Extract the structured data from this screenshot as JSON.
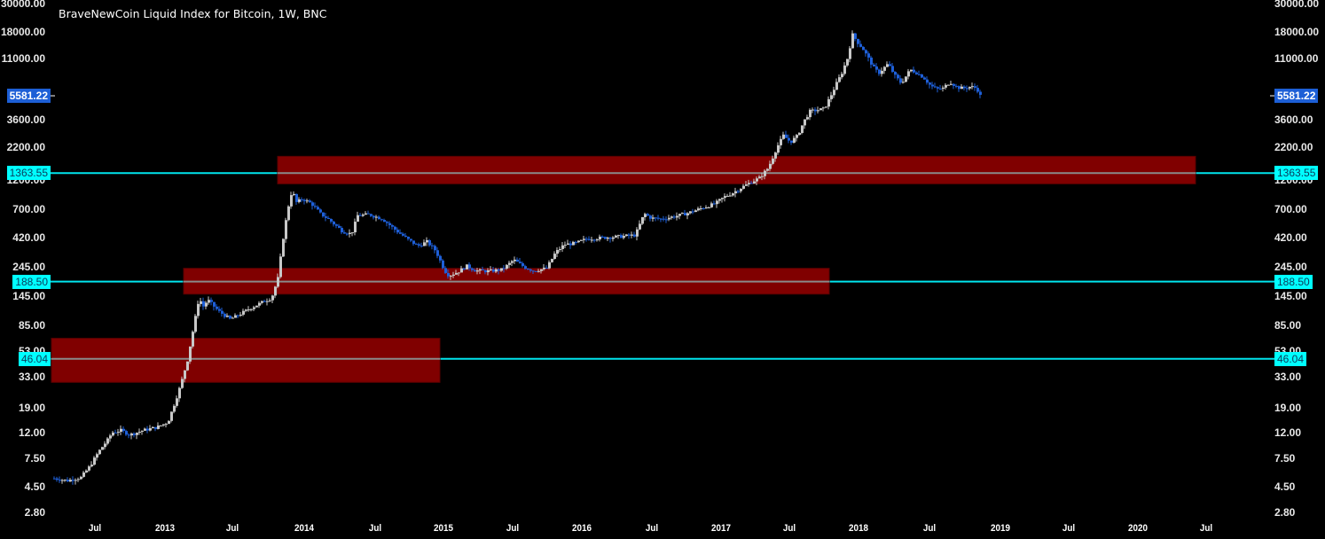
{
  "header": {
    "title": "BraveNewCoin Liquid Index for Bitcoin, 1W, BNC"
  },
  "colors": {
    "background": "#000000",
    "up_candle": "#c8c8c8",
    "down_candle": "#1e5fd8",
    "zone_fill": "#800000",
    "zone_border": "#5a0000",
    "zone_midline": "#8a8a8a",
    "level_line": "#00e5ee",
    "current_price_bg": "#1d5fd6",
    "level_label_bg": "#00ffff"
  },
  "current_price": {
    "label": "5581.22",
    "value": 5581.22
  },
  "levels": [
    {
      "label": "1363.55",
      "value": 1363.55
    },
    {
      "label": "188.50",
      "value": 188.5
    },
    {
      "label": "46.04",
      "value": 46.04
    }
  ],
  "chart_data": {
    "type": "candlestick",
    "title": "BraveNewCoin Liquid Index for Bitcoin, 1W, BNC",
    "interval": "1W",
    "y_scale": "log",
    "ylim": [
      2.8,
      30000
    ],
    "y_ticks": [
      "30000.00",
      "18000.00",
      "11000.00",
      "3600.00",
      "2200.00",
      "1200.00",
      "700.00",
      "420.00",
      "245.00",
      "145.00",
      "85.00",
      "53.00",
      "33.00",
      "19.00",
      "12.00",
      "7.50",
      "4.50",
      "2.80"
    ],
    "x_ticks": [
      {
        "label": "Jul",
        "x": 107
      },
      {
        "label": "2013",
        "x": 186
      },
      {
        "label": "Jul",
        "x": 262
      },
      {
        "label": "2014",
        "x": 343
      },
      {
        "label": "Jul",
        "x": 423
      },
      {
        "label": "2015",
        "x": 500
      },
      {
        "label": "Jul",
        "x": 578
      },
      {
        "label": "2016",
        "x": 656
      },
      {
        "label": "Jul",
        "x": 735
      },
      {
        "label": "2017",
        "x": 813
      },
      {
        "label": "Jul",
        "x": 890
      },
      {
        "label": "2018",
        "x": 968
      },
      {
        "label": "Jul",
        "x": 1048
      },
      {
        "label": "2019",
        "x": 1128
      },
      {
        "label": "Jul",
        "x": 1205
      },
      {
        "label": "2020",
        "x": 1283
      },
      {
        "label": "Jul",
        "x": 1360
      }
    ],
    "zones": [
      {
        "name": "resistance-zone-1363",
        "x1": 313,
        "x2": 1348,
        "top": 1850,
        "bottom": 1120,
        "mid": 1363.55
      },
      {
        "name": "support-zone-188",
        "x1": 207,
        "x2": 935,
        "top": 240,
        "bottom": 150,
        "mid": 188.5
      },
      {
        "name": "support-zone-46",
        "x1": 58,
        "x2": 496,
        "top": 67,
        "bottom": 30,
        "mid": 46.04
      }
    ],
    "price_path": [
      [
        60,
        5.2
      ],
      [
        75,
        5.0
      ],
      [
        90,
        5.3
      ],
      [
        100,
        6.5
      ],
      [
        110,
        8.5
      ],
      [
        120,
        10.5
      ],
      [
        125,
        12.0
      ],
      [
        135,
        12.5
      ],
      [
        145,
        11.5
      ],
      [
        160,
        12.5
      ],
      [
        175,
        13.2
      ],
      [
        188,
        14.5
      ],
      [
        195,
        20
      ],
      [
        202,
        28
      ],
      [
        210,
        45
      ],
      [
        218,
        90
      ],
      [
        223,
        140
      ],
      [
        228,
        120
      ],
      [
        233,
        135
      ],
      [
        245,
        110
      ],
      [
        258,
        95
      ],
      [
        265,
        100
      ],
      [
        280,
        115
      ],
      [
        295,
        130
      ],
      [
        305,
        140
      ],
      [
        312,
        200
      ],
      [
        318,
        420
      ],
      [
        323,
        700
      ],
      [
        328,
        1000
      ],
      [
        333,
        800
      ],
      [
        340,
        850
      ],
      [
        350,
        780
      ],
      [
        360,
        650
      ],
      [
        370,
        580
      ],
      [
        385,
        470
      ],
      [
        395,
        450
      ],
      [
        402,
        630
      ],
      [
        415,
        640
      ],
      [
        430,
        590
      ],
      [
        445,
        480
      ],
      [
        460,
        400
      ],
      [
        470,
        360
      ],
      [
        480,
        390
      ],
      [
        490,
        330
      ],
      [
        500,
        230
      ],
      [
        505,
        210
      ],
      [
        515,
        225
      ],
      [
        525,
        250
      ],
      [
        535,
        230
      ],
      [
        550,
        228
      ],
      [
        565,
        235
      ],
      [
        578,
        280
      ],
      [
        590,
        245
      ],
      [
        600,
        230
      ],
      [
        615,
        240
      ],
      [
        625,
        320
      ],
      [
        635,
        370
      ],
      [
        648,
        380
      ],
      [
        660,
        410
      ],
      [
        680,
        420
      ],
      [
        700,
        430
      ],
      [
        715,
        440
      ],
      [
        725,
        650
      ],
      [
        733,
        600
      ],
      [
        745,
        590
      ],
      [
        760,
        620
      ],
      [
        775,
        660
      ],
      [
        790,
        720
      ],
      [
        805,
        780
      ],
      [
        815,
        880
      ],
      [
        825,
        950
      ],
      [
        835,
        1050
      ],
      [
        845,
        1150
      ],
      [
        855,
        1250
      ],
      [
        865,
        1500
      ],
      [
        875,
        2200
      ],
      [
        882,
        2700
      ],
      [
        890,
        2400
      ],
      [
        898,
        2700
      ],
      [
        905,
        3500
      ],
      [
        912,
        4200
      ],
      [
        920,
        4300
      ],
      [
        928,
        4400
      ],
      [
        935,
        5500
      ],
      [
        942,
        7000
      ],
      [
        948,
        8500
      ],
      [
        954,
        11000
      ],
      [
        960,
        17000
      ],
      [
        965,
        15000
      ],
      [
        972,
        13000
      ],
      [
        978,
        11000
      ],
      [
        985,
        9000
      ],
      [
        990,
        8500
      ],
      [
        1000,
        10000
      ],
      [
        1008,
        8000
      ],
      [
        1015,
        7000
      ],
      [
        1025,
        9000
      ],
      [
        1032,
        8500
      ],
      [
        1040,
        7800
      ],
      [
        1048,
        6700
      ],
      [
        1055,
        6300
      ],
      [
        1062,
        6400
      ],
      [
        1070,
        7200
      ],
      [
        1078,
        6500
      ],
      [
        1085,
        6400
      ],
      [
        1093,
        6600
      ],
      [
        1100,
        6400
      ],
      [
        1104,
        5581
      ]
    ]
  }
}
